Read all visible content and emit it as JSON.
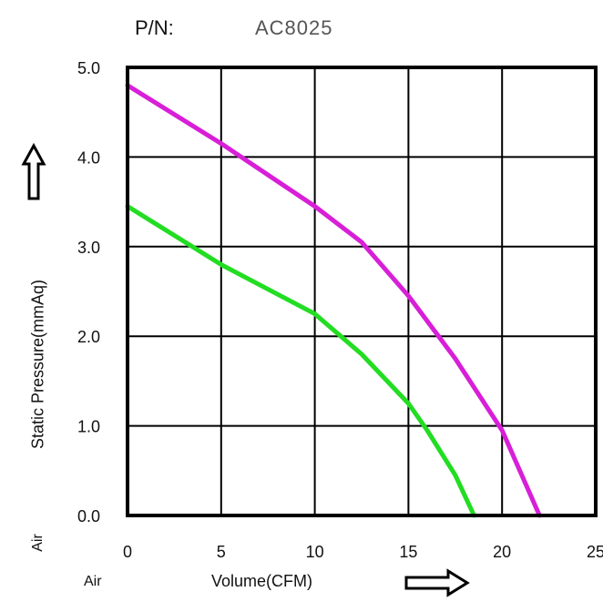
{
  "header": {
    "pn_label": "P/N:",
    "pn_value": "AC8025"
  },
  "labels": {
    "air_y": "Air",
    "air_x": "Air"
  },
  "chart_data": {
    "type": "line",
    "xlabel": "Volume(CFM)",
    "ylabel": "Static Pressure(mmAq)",
    "xlim": [
      0,
      25
    ],
    "ylim": [
      0,
      5
    ],
    "x_ticks": [
      "0",
      "5",
      "10",
      "15",
      "20",
      "25"
    ],
    "y_ticks": [
      "0.0",
      "1.0",
      "2.0",
      "3.0",
      "4.0",
      "5.0"
    ],
    "grid": true,
    "colors": {
      "upper": "#d81fd8",
      "lower": "#22dd22"
    },
    "series": [
      {
        "color_key": "upper",
        "x": [
          0,
          5,
          10,
          12.5,
          15,
          17.5,
          20,
          22
        ],
        "y": [
          4.8,
          4.15,
          3.45,
          3.05,
          2.45,
          1.75,
          0.95,
          0
        ]
      },
      {
        "color_key": "lower",
        "x": [
          0,
          5,
          10,
          12.5,
          15,
          16,
          17.5,
          18.5
        ],
        "y": [
          3.45,
          2.8,
          2.25,
          1.8,
          1.25,
          0.95,
          0.45,
          0
        ]
      }
    ]
  }
}
